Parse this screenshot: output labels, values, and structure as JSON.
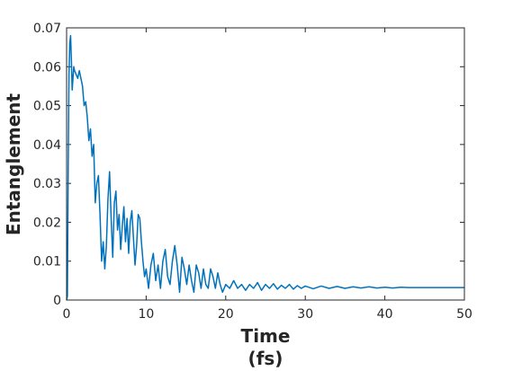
{
  "chart_data": {
    "type": "line",
    "title": "",
    "xlabel": "Time",
    "xlabel_unit": "(fs)",
    "ylabel": "Entanglement",
    "xlim": [
      0,
      50
    ],
    "ylim": [
      0,
      0.07
    ],
    "xticks": [
      0,
      10,
      20,
      30,
      40,
      50
    ],
    "yticks": [
      0,
      0.01,
      0.02,
      0.03,
      0.04,
      0.05,
      0.06,
      0.07
    ],
    "ytick_labels": [
      "0",
      "0.01",
      "0.02",
      "0.03",
      "0.04",
      "0.05",
      "0.06",
      "0.07"
    ],
    "grid": false,
    "line_color": "#0072BD",
    "series": [
      {
        "x": [
          0,
          0.1,
          0.2,
          0.3,
          0.4,
          0.5,
          0.6,
          0.7,
          0.8,
          0.9,
          1.0,
          1.2,
          1.4,
          1.6,
          1.8,
          2.0,
          2.2,
          2.4,
          2.6,
          2.8,
          3.0,
          3.2,
          3.4,
          3.6,
          3.8,
          4.0,
          4.2,
          4.4,
          4.6,
          4.8,
          5.0,
          5.2,
          5.4,
          5.6,
          5.8,
          6.0,
          6.2,
          6.4,
          6.6,
          6.8,
          7.0,
          7.2,
          7.4,
          7.6,
          7.8,
          8.0,
          8.2,
          8.4,
          8.6,
          8.8,
          9.0,
          9.2,
          9.4,
          9.6,
          9.8,
          10.0,
          10.3,
          10.6,
          10.9,
          11.2,
          11.5,
          11.8,
          12.1,
          12.4,
          12.7,
          13.0,
          13.3,
          13.6,
          13.9,
          14.2,
          14.5,
          14.8,
          15.1,
          15.4,
          15.7,
          16.0,
          16.3,
          16.6,
          16.9,
          17.2,
          17.5,
          17.8,
          18.1,
          18.4,
          18.7,
          19.0,
          19.3,
          19.6,
          20.0,
          20.5,
          21.0,
          21.5,
          22.0,
          22.5,
          23.0,
          23.5,
          24.0,
          24.5,
          25.0,
          25.5,
          26.0,
          26.5,
          27.0,
          27.5,
          28.0,
          28.5,
          29.0,
          29.5,
          30.0,
          31.0,
          32.0,
          33.0,
          34.0,
          35.0,
          36.0,
          37.0,
          38.0,
          39.0,
          40.0,
          41.0,
          42.0,
          43.0,
          44.0,
          45.0,
          46.0,
          47.0,
          48.0,
          49.0,
          50.0
        ],
        "y": [
          0,
          0.001,
          0.034,
          0.058,
          0.066,
          0.068,
          0.062,
          0.054,
          0.057,
          0.06,
          0.059,
          0.058,
          0.057,
          0.059,
          0.057,
          0.055,
          0.05,
          0.051,
          0.047,
          0.041,
          0.044,
          0.037,
          0.04,
          0.025,
          0.03,
          0.032,
          0.022,
          0.01,
          0.015,
          0.008,
          0.014,
          0.026,
          0.033,
          0.021,
          0.011,
          0.025,
          0.028,
          0.018,
          0.022,
          0.013,
          0.019,
          0.024,
          0.015,
          0.021,
          0.012,
          0.02,
          0.023,
          0.016,
          0.009,
          0.014,
          0.022,
          0.021,
          0.015,
          0.01,
          0.006,
          0.008,
          0.003,
          0.009,
          0.012,
          0.005,
          0.009,
          0.003,
          0.01,
          0.013,
          0.006,
          0.004,
          0.01,
          0.014,
          0.009,
          0.002,
          0.011,
          0.008,
          0.004,
          0.009,
          0.005,
          0.002,
          0.009,
          0.007,
          0.003,
          0.008,
          0.004,
          0.003,
          0.008,
          0.006,
          0.003,
          0.007,
          0.004,
          0.002,
          0.004,
          0.003,
          0.005,
          0.003,
          0.004,
          0.0025,
          0.004,
          0.003,
          0.0045,
          0.0025,
          0.004,
          0.003,
          0.0042,
          0.0028,
          0.0038,
          0.003,
          0.004,
          0.0028,
          0.0037,
          0.003,
          0.0036,
          0.0029,
          0.0036,
          0.003,
          0.0035,
          0.003,
          0.0034,
          0.0031,
          0.0034,
          0.0031,
          0.0033,
          0.0031,
          0.0033,
          0.0032,
          0.0032,
          0.0032,
          0.0032,
          0.0032,
          0.0032,
          0.0032,
          0.0032
        ]
      }
    ]
  }
}
